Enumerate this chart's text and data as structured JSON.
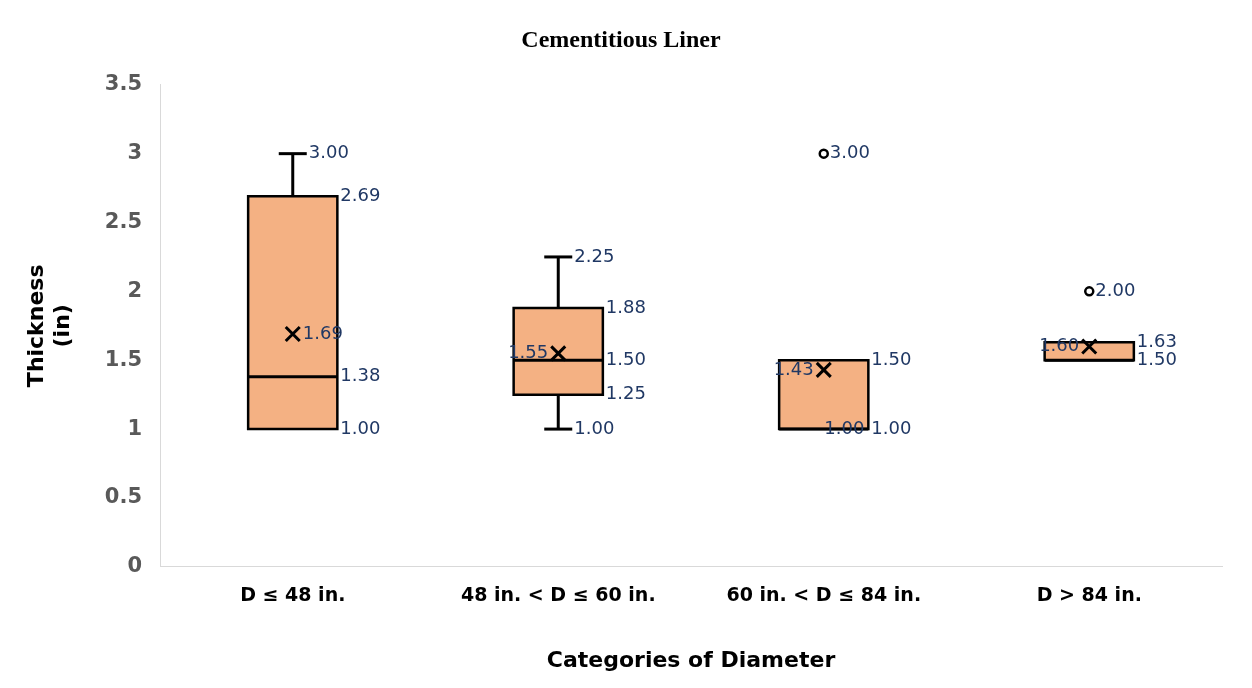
{
  "chart_data": {
    "type": "box",
    "title": "Cementitious Liner",
    "xlabel": "Categories of Diameter",
    "ylabel": "Thickness (in)",
    "categories": [
      "D ≤ 48 in.",
      "48 in. < D ≤ 60 in.",
      "60 in. < D ≤ 84 in.",
      "D > 84 in."
    ],
    "boxes": [
      {
        "low": 1.0,
        "q1": 1.0,
        "median": 1.38,
        "q3": 2.69,
        "high": 3.0,
        "mean": 1.69
      },
      {
        "low": 1.0,
        "q1": 1.25,
        "median": 1.5,
        "q3": 1.88,
        "high": 2.25,
        "mean": 1.55
      },
      {
        "low": 1.0,
        "q1": 1.0,
        "median": 1.0,
        "q3": 1.5,
        "high": 1.5,
        "mean": 1.43,
        "outliers": [
          3.0
        ]
      },
      {
        "low": 1.5,
        "q1": 1.5,
        "median": 1.5,
        "q3": 1.63,
        "high": 1.63,
        "mean": 1.6,
        "outliers": [
          2.0
        ]
      }
    ],
    "annotations": [
      {
        "text": "3.00",
        "x": "D ≤ 48 in.",
        "y": 3.0
      },
      {
        "text": "2.69",
        "x": "D ≤ 48 in.",
        "y": 2.69
      },
      "1.69",
      {
        "text": "1.38",
        "x": "D ≤ 48 in.",
        "y": 1.38
      },
      {
        "text": "1.00",
        "x": "D ≤ 48 in.",
        "y": 1.0
      },
      {
        "text": "2.25",
        "x": "48 in. < D ≤ 60 in.",
        "y": 2.25
      },
      {
        "text": "1.88",
        "x": "48 in. < D ≤ 60 in.",
        "y": 1.88
      },
      "1.55",
      {
        "text": "1.50",
        "x": "48 in. < D ≤ 60 in.",
        "y": 1.5
      },
      {
        "text": "1.25",
        "x": "48 in. < D ≤ 60 in.",
        "y": 1.25
      },
      {
        "text": "1.00",
        "x": "48 in. < D ≤ 60 in.",
        "y": 1.0
      },
      "1.43",
      {
        "text": "1.50",
        "x": "60 in. < D ≤ 84 in.",
        "y": 1.5
      },
      "3.00",
      {
        "text": "1.00",
        "x": "60 in. < D ≤ 84 in.",
        "y": 1.0
      },
      {
        "text": "1.00",
        "x": "60 in. < D ≤ 84 in.",
        "y": 1.0
      },
      "1.60",
      {
        "text": "1.63",
        "x": "D > 84 in.",
        "y": 1.63
      },
      "2.00",
      {
        "text": "1.50",
        "x": "D > 84 in.",
        "y": 1.5
      }
    ],
    "color": "#f4b183",
    "ylim": [
      0,
      3.5
    ],
    "yticks": [
      0,
      0.5,
      1,
      1.5,
      2,
      2.5,
      3,
      3.5
    ],
    "grid": false,
    "legend": false
  }
}
